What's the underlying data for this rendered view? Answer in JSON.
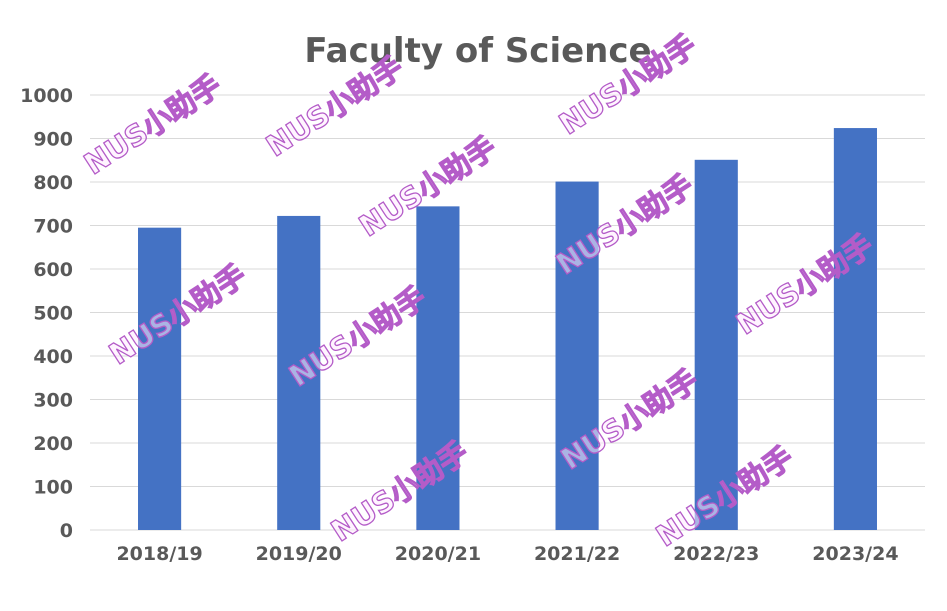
{
  "chart_data": {
    "type": "bar",
    "title": "Faculty of Science",
    "xlabel": "",
    "ylabel": "",
    "categories": [
      "2018/19",
      "2019/20",
      "2020/21",
      "2021/22",
      "2022/23",
      "2023/24"
    ],
    "values": [
      695,
      722,
      744,
      801,
      851,
      924
    ],
    "ylim": [
      0,
      1000
    ],
    "ytick_step": 100,
    "grid": true,
    "legend": "none",
    "bar_color": "#4472C4",
    "grid_color": "#D9D9D9"
  },
  "watermark": {
    "text": "NUS小助手"
  }
}
